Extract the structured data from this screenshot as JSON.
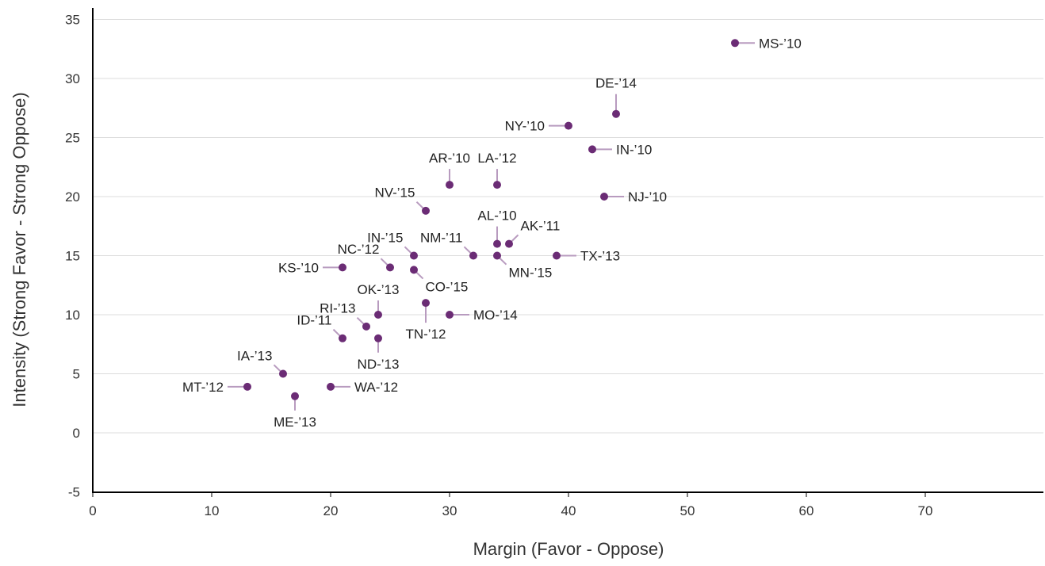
{
  "chart_data": {
    "type": "scatter",
    "title": "",
    "xlabel": "Margin (Favor - Oppose)",
    "ylabel": "Intensity (Strong Favor - Strong Oppose)",
    "xlim": [
      0,
      80
    ],
    "ylim": [
      -5,
      36
    ],
    "x_ticks": [
      0,
      10,
      20,
      30,
      40,
      50,
      60,
      70
    ],
    "y_ticks": [
      -5,
      0,
      5,
      10,
      15,
      20,
      25,
      30,
      35
    ],
    "grid": "horizontal",
    "point_color": "#6b2c75",
    "leader_color": "#b89bbf",
    "points": [
      {
        "label": "MS-’10",
        "x": 54,
        "y": 33
      },
      {
        "label": "DE-’14",
        "x": 44,
        "y": 27
      },
      {
        "label": "NY-’10",
        "x": 40,
        "y": 26
      },
      {
        "label": "IN-’10",
        "x": 42,
        "y": 24
      },
      {
        "label": "AR-’10",
        "x": 30,
        "y": 21
      },
      {
        "label": "LA-’12",
        "x": 34,
        "y": 21
      },
      {
        "label": "NJ-’10",
        "x": 43,
        "y": 20
      },
      {
        "label": "NV-’15",
        "x": 28,
        "y": 18.8
      },
      {
        "label": "AL-’10",
        "x": 34,
        "y": 16
      },
      {
        "label": "AK-’11",
        "x": 35,
        "y": 16
      },
      {
        "label": "IN-’15",
        "x": 27,
        "y": 15
      },
      {
        "label": "NM-’11",
        "x": 32,
        "y": 15
      },
      {
        "label": "MN-’15",
        "x": 34,
        "y": 15
      },
      {
        "label": "TX-’13",
        "x": 39,
        "y": 15
      },
      {
        "label": "NC-’12",
        "x": 25,
        "y": 14
      },
      {
        "label": "KS-’10",
        "x": 21,
        "y": 14
      },
      {
        "label": "CO-’15",
        "x": 27,
        "y": 13.8
      },
      {
        "label": "TN-’12",
        "x": 28,
        "y": 11
      },
      {
        "label": "OK-’13",
        "x": 24,
        "y": 10
      },
      {
        "label": "MO-’14",
        "x": 30,
        "y": 10
      },
      {
        "label": "RI-’13",
        "x": 23,
        "y": 9
      },
      {
        "label": "ID-’11",
        "x": 21,
        "y": 8
      },
      {
        "label": "ND-’13",
        "x": 24,
        "y": 8
      },
      {
        "label": "IA-’13",
        "x": 16,
        "y": 5
      },
      {
        "label": "MT-’12",
        "x": 13,
        "y": 3.9
      },
      {
        "label": "WA-’12",
        "x": 20,
        "y": 3.9
      },
      {
        "label": "ME-’13",
        "x": 17,
        "y": 3.1
      }
    ]
  }
}
